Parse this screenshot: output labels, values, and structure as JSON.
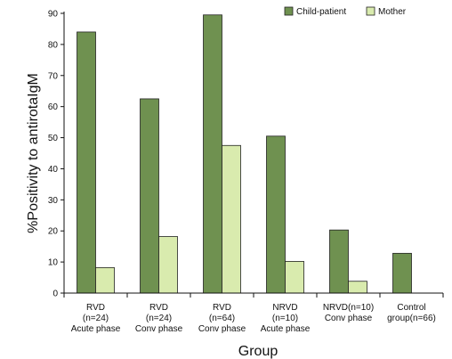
{
  "chart_data": {
    "type": "bar",
    "xlabel": "Group",
    "ylabel": "%Positivity to antirotaIgM",
    "ylim": [
      0,
      90
    ],
    "yticks": [
      0,
      10,
      20,
      30,
      40,
      50,
      60,
      70,
      80,
      90
    ],
    "grid": false,
    "legend_position": "top-right",
    "categories": [
      [
        "RVD",
        "(n=24)",
        "Acute phase"
      ],
      [
        "RVD",
        "(n=24)",
        "Conv phase"
      ],
      [
        "RVD",
        "(n=64)",
        "Conv phase"
      ],
      [
        "NRVD",
        "(n=10)",
        "Acute phase"
      ],
      [
        "NRVD(n=10)",
        "Conv phase"
      ],
      [
        "Control",
        "group(n=66)"
      ]
    ],
    "series": [
      {
        "name": "Child-patient",
        "color": "#6f9150",
        "values": [
          84,
          62.5,
          89.5,
          50.5,
          20.3,
          12.8
        ]
      },
      {
        "name": "Mother",
        "color": "#d9ebae",
        "values": [
          8.2,
          18.2,
          47.5,
          10.2,
          3.8,
          null
        ]
      }
    ]
  }
}
